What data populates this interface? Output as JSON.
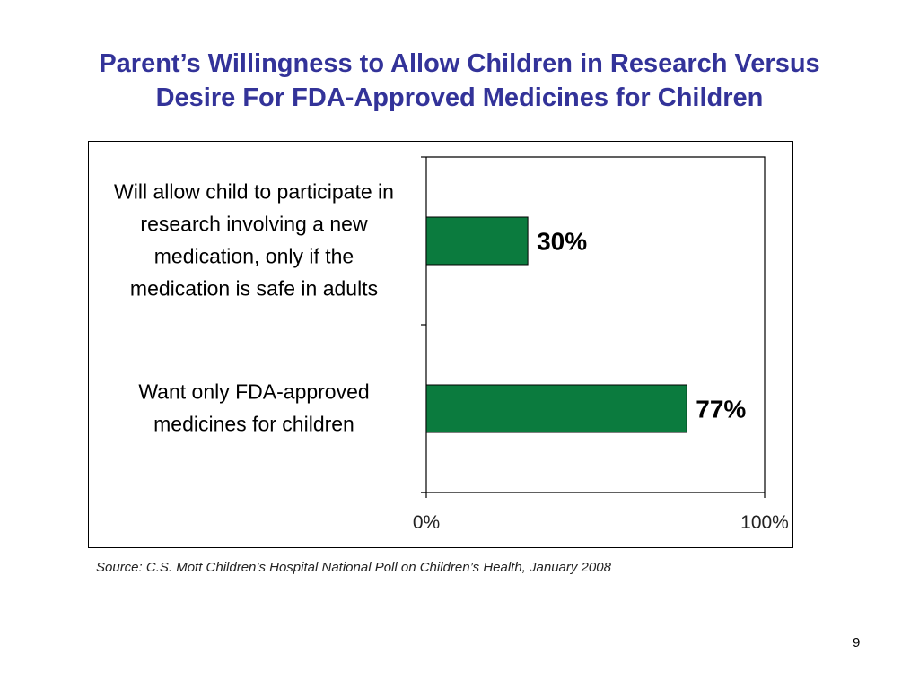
{
  "slide": {
    "title_lines": [
      "Parent’s Willingness to Allow Children in Research Versus",
      "Desire For FDA-Approved Medicines for Children"
    ],
    "page_number": "9"
  },
  "chart_data": {
    "type": "bar",
    "orientation": "horizontal",
    "categories": [
      [
        "Will allow child to participate in",
        "research involving a new",
        "medication, only if the",
        "medication is safe in adults"
      ],
      [
        "Want only FDA-approved",
        "medicines for children"
      ]
    ],
    "values": [
      30,
      77
    ],
    "value_labels": [
      "30%",
      "77%"
    ],
    "xlim": [
      0,
      100
    ],
    "x_tick_labels": [
      "0%",
      "100%"
    ],
    "bar_color": "#0B7B3E",
    "grid": false,
    "legend": "none",
    "source": "Source: C.S. Mott Children’s Hospital National Poll on Children’s Health, January 2008"
  }
}
